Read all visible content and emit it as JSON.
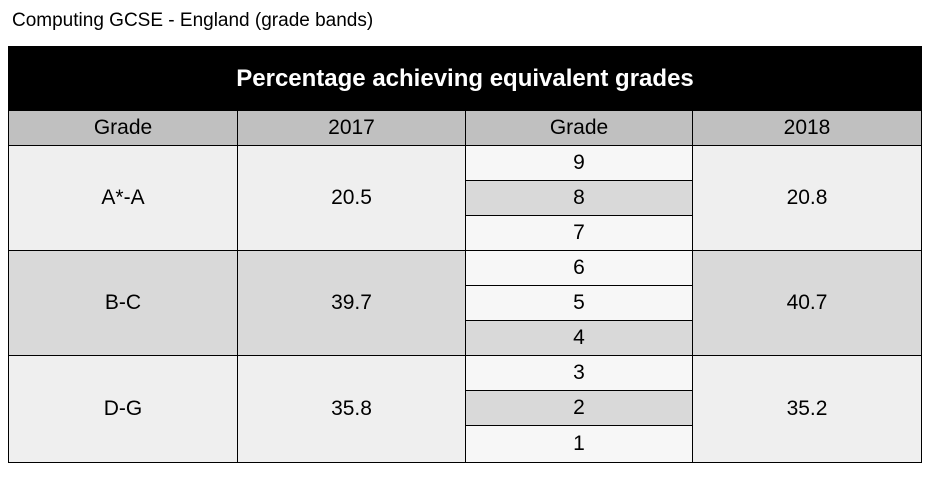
{
  "caption": "Computing GCSE - England (grade bands)",
  "table": {
    "title": "Percentage achieving equivalent grades",
    "headers": [
      "Grade",
      "2017",
      "Grade",
      "2018"
    ],
    "rows": [
      {
        "band": "A*-A",
        "value_2017": 20.5,
        "grades": [
          9,
          8,
          7
        ],
        "value_2018": 20.8
      },
      {
        "band": "B-C",
        "value_2017": 39.7,
        "grades": [
          6,
          5,
          4
        ],
        "value_2018": 40.7
      },
      {
        "band": "D-G",
        "value_2017": 35.8,
        "grades": [
          3,
          2,
          1
        ],
        "value_2018": 35.2
      }
    ]
  }
}
